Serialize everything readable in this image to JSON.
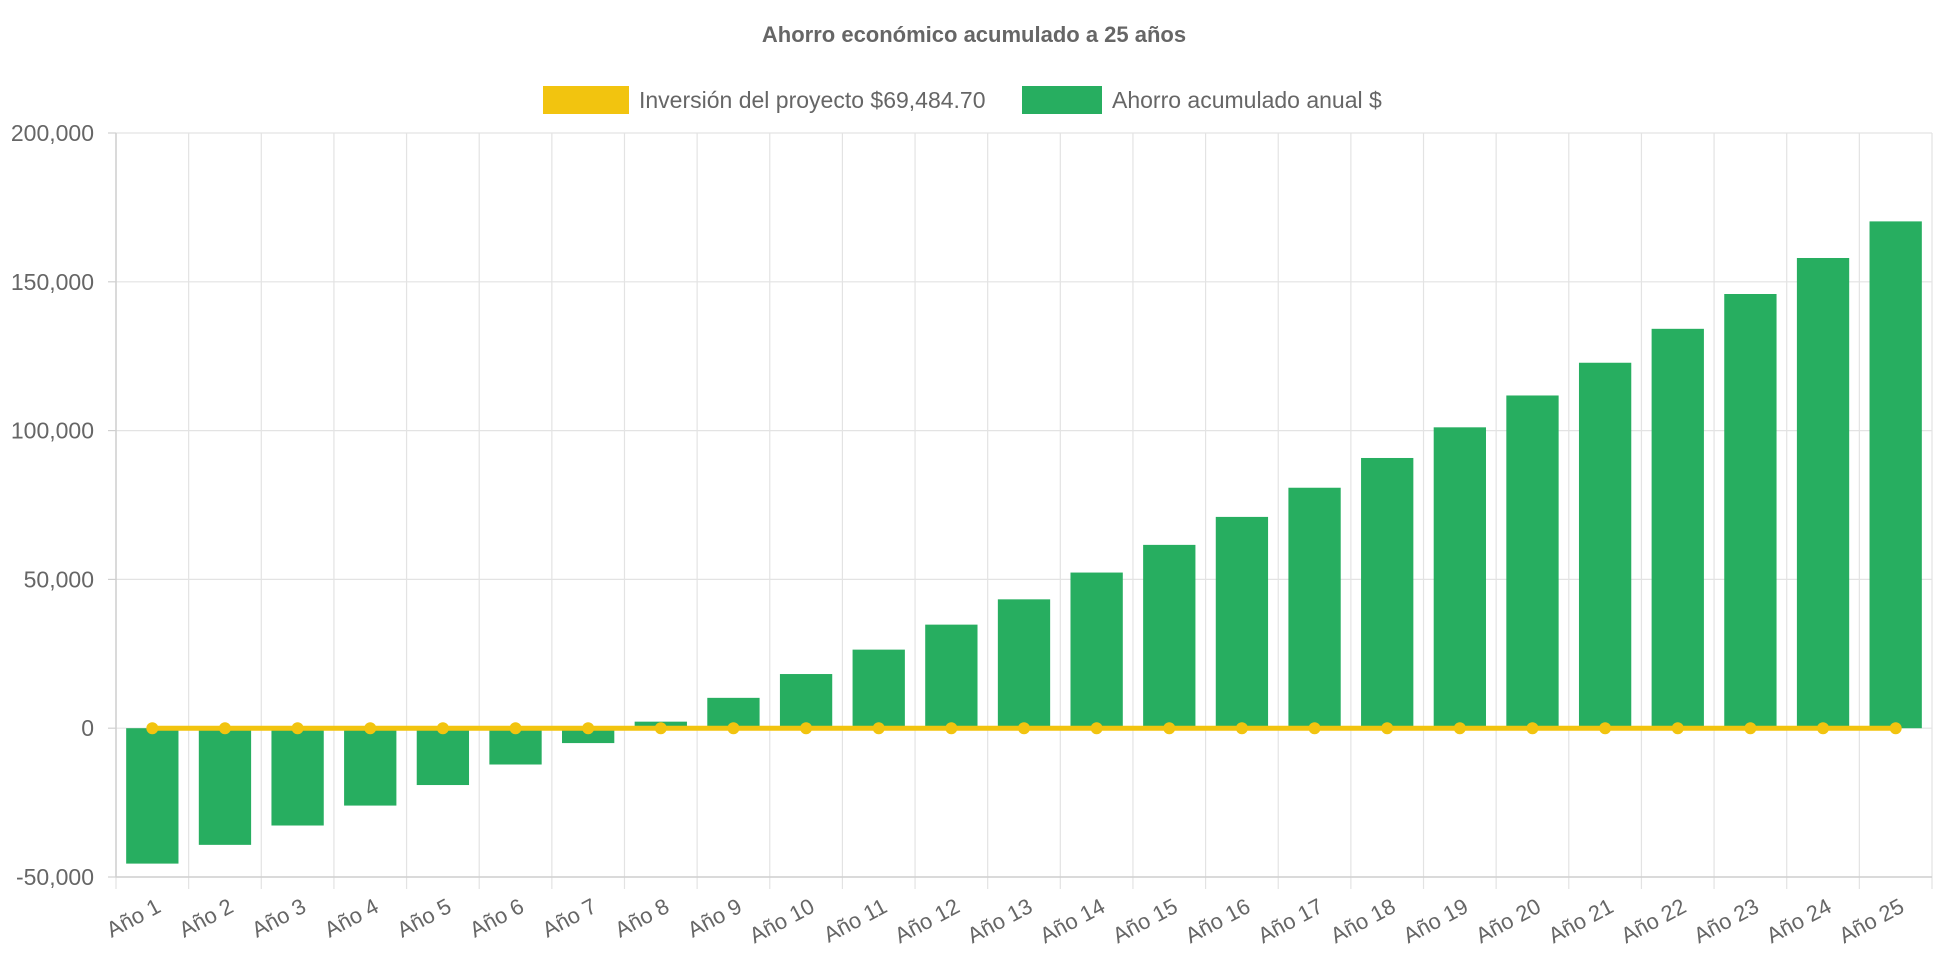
{
  "chart_data": {
    "type": "bar",
    "title": "Ahorro económico acumulado a 25 años",
    "xlabel": "",
    "ylabel": "",
    "ylim": [
      -50000,
      200000
    ],
    "yticks": [
      -50000,
      0,
      50000,
      100000,
      150000,
      200000
    ],
    "ytick_labels": [
      "-50,000",
      "0",
      "50,000",
      "100,000",
      "150,000",
      "200,000"
    ],
    "grid": true,
    "legend_position": "top-center",
    "categories": [
      "Año 1",
      "Año 2",
      "Año 3",
      "Año 4",
      "Año 5",
      "Año 6",
      "Año 7",
      "Año 8",
      "Año 9",
      "Año 10",
      "Año 11",
      "Año 12",
      "Año 13",
      "Año 14",
      "Año 15",
      "Año 16",
      "Año 17",
      "Año 18",
      "Año 19",
      "Año 20",
      "Año 21",
      "Año 22",
      "Año 23",
      "Año 24",
      "Año 25"
    ],
    "series": [
      {
        "name": "Inversión del proyecto $69,484.70",
        "type": "line",
        "color": "#F2C40F",
        "values": [
          0,
          0,
          0,
          0,
          0,
          0,
          0,
          0,
          0,
          0,
          0,
          0,
          0,
          0,
          0,
          0,
          0,
          0,
          0,
          0,
          0,
          0,
          0,
          0,
          0
        ]
      },
      {
        "name": "Ahorro acumulado anual $",
        "type": "bar",
        "color": "#27AE60",
        "values": [
          -45500,
          -39200,
          -32700,
          -26000,
          -19100,
          -12200,
          -5000,
          2200,
          10200,
          18200,
          26400,
          34800,
          43300,
          52300,
          61600,
          71000,
          80800,
          90800,
          101100,
          111800,
          122800,
          134200,
          145900,
          158000,
          170300
        ]
      }
    ]
  }
}
